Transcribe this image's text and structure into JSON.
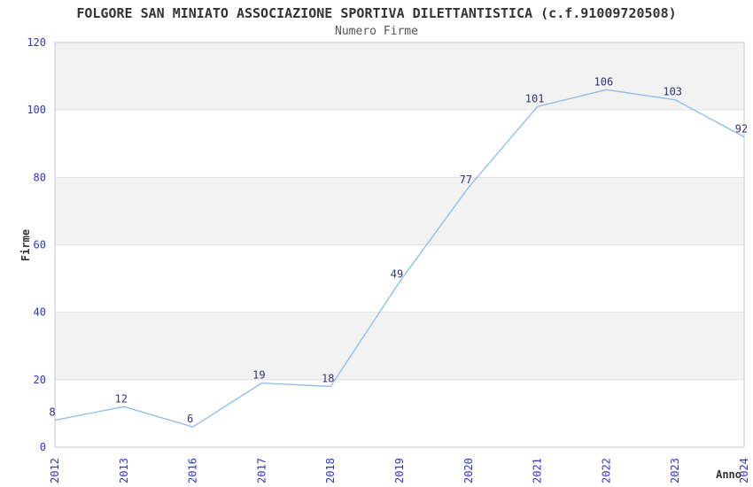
{
  "chart_data": {
    "type": "line",
    "title": "FOLGORE SAN MINIATO ASSOCIAZIONE SPORTIVA DILETTANTISTICA (c.f.91009720508)",
    "subtitle": "Numero Firme",
    "xlabel": "Anno",
    "ylabel": "Firme",
    "categories": [
      "2012",
      "2013",
      "2016",
      "2017",
      "2018",
      "2019",
      "2020",
      "2021",
      "2022",
      "2023",
      "2024"
    ],
    "values": [
      8,
      12,
      6,
      19,
      18,
      49,
      77,
      101,
      106,
      103,
      92
    ],
    "ylim": [
      0,
      120
    ],
    "yticks": [
      0,
      20,
      40,
      60,
      80,
      100,
      120
    ],
    "grid": "alternating-horizontal-bands",
    "legend": "none",
    "point_labels_shown": true,
    "colors": {
      "line": "#8cbcec",
      "point_label": "#333380",
      "tick_label": "#3333cc",
      "band": "#f2f2f2",
      "gridline": "#e2e2e2",
      "plot_border": "#c9c9c9",
      "title": "#333333",
      "subtitle": "#555555",
      "axis_title": "#333333",
      "background": "#ffffff"
    }
  }
}
